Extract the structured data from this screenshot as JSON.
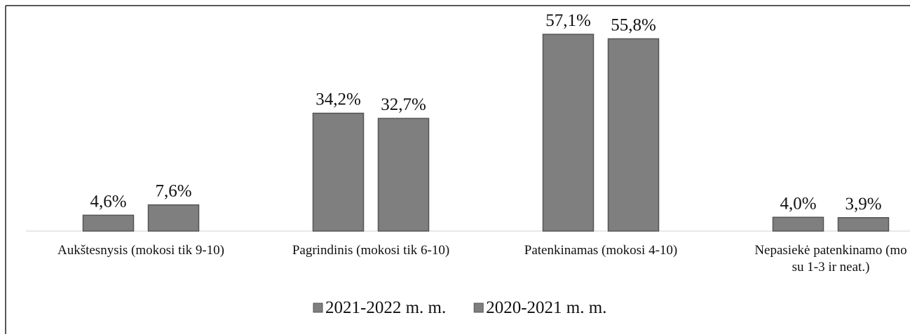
{
  "chart_data": {
    "type": "bar",
    "categories": [
      "Aukštesnysis (mokosi tik 9-10)",
      "Pagrindinis (mokosi tik 6-10)",
      "Patenkinamas (mokosi 4-10)",
      "Nepasiekė patenkinamo (mo\nsu 1-3 ir neat.)"
    ],
    "series": [
      {
        "name": "2021-2022 m. m.",
        "color": "#7f7f7f",
        "values": [
          4.6,
          34.2,
          57.1,
          4.0
        ],
        "value_labels": [
          "4,6%",
          "34,2%",
          "57,1%",
          "4,0%"
        ]
      },
      {
        "name": "2020-2021 m. m.",
        "color": "#7f7f7f",
        "values": [
          7.6,
          32.7,
          55.8,
          3.9
        ],
        "value_labels": [
          "7,6%",
          "32,7%",
          "55,8%",
          "3,9%"
        ]
      }
    ],
    "legend": "bottom"
  }
}
